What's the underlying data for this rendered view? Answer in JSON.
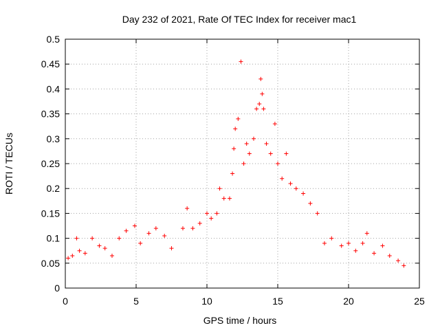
{
  "chart_data": {
    "type": "scatter",
    "title": "Day 232 of 2021, Rate Of TEC Index for receiver mac1",
    "xlabel": "GPS time / hours",
    "ylabel": "ROTI / TECUs",
    "xlim": [
      0,
      25
    ],
    "ylim": [
      0,
      0.5
    ],
    "xticks": [
      "0",
      "5",
      "10",
      "15",
      "20",
      "25"
    ],
    "yticks": [
      "0",
      "0.05",
      "0.1",
      "0.15",
      "0.2",
      "0.25",
      "0.3",
      "0.35",
      "0.4",
      "0.45",
      "0.5"
    ],
    "grid": true,
    "marker": "+",
    "series": [
      {
        "name": "ROTI",
        "color": "#ff0000",
        "points": [
          [
            0.2,
            0.06
          ],
          [
            0.5,
            0.065
          ],
          [
            0.8,
            0.1
          ],
          [
            1.0,
            0.075
          ],
          [
            1.4,
            0.07
          ],
          [
            1.9,
            0.1
          ],
          [
            2.4,
            0.085
          ],
          [
            2.8,
            0.08
          ],
          [
            3.3,
            0.065
          ],
          [
            3.8,
            0.1
          ],
          [
            4.3,
            0.115
          ],
          [
            4.9,
            0.125
          ],
          [
            5.3,
            0.09
          ],
          [
            5.9,
            0.11
          ],
          [
            6.4,
            0.12
          ],
          [
            7.0,
            0.105
          ],
          [
            7.5,
            0.08
          ],
          [
            8.3,
            0.12
          ],
          [
            8.6,
            0.16
          ],
          [
            9.0,
            0.12
          ],
          [
            9.5,
            0.13
          ],
          [
            10.0,
            0.15
          ],
          [
            10.3,
            0.14
          ],
          [
            10.7,
            0.15
          ],
          [
            10.9,
            0.2
          ],
          [
            11.2,
            0.18
          ],
          [
            11.6,
            0.18
          ],
          [
            11.8,
            0.23
          ],
          [
            11.9,
            0.28
          ],
          [
            12.0,
            0.32
          ],
          [
            12.2,
            0.34
          ],
          [
            12.4,
            0.455
          ],
          [
            12.6,
            0.25
          ],
          [
            12.8,
            0.29
          ],
          [
            13.0,
            0.27
          ],
          [
            13.3,
            0.3
          ],
          [
            13.5,
            0.36
          ],
          [
            13.7,
            0.37
          ],
          [
            13.8,
            0.42
          ],
          [
            13.9,
            0.39
          ],
          [
            14.0,
            0.36
          ],
          [
            14.2,
            0.29
          ],
          [
            14.5,
            0.27
          ],
          [
            14.8,
            0.33
          ],
          [
            15.0,
            0.25
          ],
          [
            15.3,
            0.22
          ],
          [
            15.6,
            0.27
          ],
          [
            15.9,
            0.21
          ],
          [
            16.3,
            0.2
          ],
          [
            16.8,
            0.19
          ],
          [
            17.3,
            0.17
          ],
          [
            17.8,
            0.15
          ],
          [
            18.3,
            0.09
          ],
          [
            18.8,
            0.1
          ],
          [
            19.5,
            0.085
          ],
          [
            20.0,
            0.09
          ],
          [
            20.5,
            0.075
          ],
          [
            21.0,
            0.09
          ],
          [
            21.3,
            0.11
          ],
          [
            21.8,
            0.07
          ],
          [
            22.4,
            0.085
          ],
          [
            22.9,
            0.065
          ],
          [
            23.5,
            0.055
          ],
          [
            23.9,
            0.045
          ]
        ]
      }
    ]
  }
}
